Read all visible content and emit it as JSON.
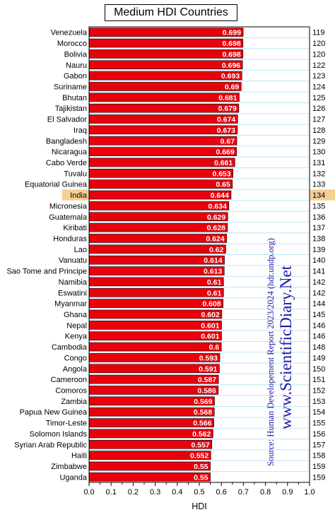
{
  "chart_data": {
    "type": "bar",
    "orientation": "horizontal",
    "title": "Medium HDI Countries",
    "xlabel": "HDI",
    "xlim": [
      0,
      1
    ],
    "x_ticks": [
      "0.0",
      "0.1",
      "0.2",
      "0.3",
      "0.4",
      "0.5",
      "0.6",
      "0.7",
      "0.8",
      "0.9",
      "1.0"
    ],
    "categories": [
      "Venezuela",
      "Morocco",
      "Bolivia",
      "Nauru",
      "Gabon",
      "Suriname",
      "Bhutan",
      "Tajikistan",
      "El Salvador",
      "Iraq",
      "Bangladesh",
      "Nicaragua",
      "Cabo Verde",
      "Tuvalu",
      "Equatorial Guinea",
      "India",
      "Micronesia",
      "Guatemala",
      "Kiribati",
      "Honduras",
      "Lao",
      "Vanuatu",
      "Sao Tome and Principe",
      "Namibia",
      "Eswatini",
      "Myanmar",
      "Ghana",
      "Nepal",
      "Kenya",
      "Cambodia",
      "Congo",
      "Angola",
      "Cameroon",
      "Comoros",
      "Zambia",
      "Papua New Guinea",
      "Timor-Leste",
      "Solomon Islands",
      "Syrian Arab Republic",
      "Haiti",
      "Zimbabwe",
      "Uganda"
    ],
    "values": [
      0.699,
      0.698,
      0.698,
      0.696,
      0.693,
      0.69,
      0.681,
      0.679,
      0.674,
      0.673,
      0.67,
      0.669,
      0.661,
      0.653,
      0.65,
      0.644,
      0.634,
      0.629,
      0.628,
      0.624,
      0.62,
      0.614,
      0.613,
      0.61,
      0.61,
      0.608,
      0.602,
      0.601,
      0.601,
      0.6,
      0.593,
      0.591,
      0.587,
      0.586,
      0.569,
      0.568,
      0.566,
      0.562,
      0.557,
      0.552,
      0.55,
      0.55
    ],
    "value_labels": [
      "0.699",
      "0.698",
      "0.698",
      "0.696",
      "0.693",
      "0.69",
      "0.681",
      "0.679",
      "0.674",
      "0.673",
      "0.67",
      "0.669",
      "0.661",
      "0.653",
      "0.65",
      "0.644",
      "0.634",
      "0.629",
      "0.628",
      "0.624",
      "0.62",
      "0.614",
      "0.613",
      "0.61",
      "0.61",
      "0.608",
      "0.602",
      "0.601",
      "0.601",
      "0.6",
      "0.593",
      "0.591",
      "0.587",
      "0.586",
      "0.569",
      "0.568",
      "0.566",
      "0.562",
      "0.557",
      "0.552",
      "0.55",
      "0.55"
    ],
    "ranks": [
      "119",
      "120",
      "120",
      "122",
      "123",
      "124",
      "125",
      "126",
      "127",
      "128",
      "129",
      "130",
      "131",
      "132",
      "133",
      "134",
      "135",
      "136",
      "137",
      "138",
      "139",
      "140",
      "141",
      "142",
      "142",
      "144",
      "145",
      "146",
      "146",
      "148",
      "149",
      "150",
      "151",
      "152",
      "153",
      "154",
      "155",
      "156",
      "157",
      "158",
      "159",
      "159"
    ],
    "highlight": "India",
    "bar_color": "#e8000b",
    "highlight_color": "#f5cf94",
    "grid": true,
    "grid_color": "#bfe7f5"
  },
  "source_text": "Source: Human Developement Report 2023/2024 (hdr.undp.org)",
  "watermark_text": "www.ScientificDiary.Net"
}
